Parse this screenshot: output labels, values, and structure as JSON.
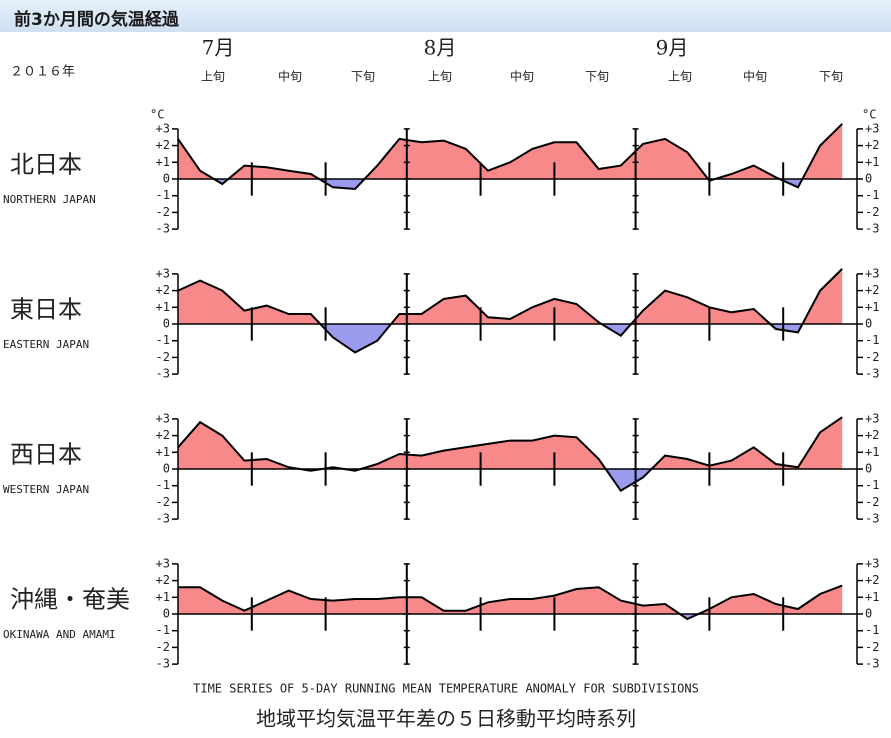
{
  "header": {
    "title": "前3か月間の気温経過"
  },
  "axis": {
    "year": "２０１６年",
    "months": [
      "7月",
      "8月",
      "9月"
    ],
    "dekads": [
      "上旬",
      "中旬",
      "下旬",
      "上旬",
      "中旬",
      "下旬",
      "上旬",
      "中旬",
      "下旬"
    ]
  },
  "footer": {
    "caption_en": "TIME SERIES OF 5-DAY RUNNING MEAN TEMPERATURE ANOMALY FOR SUBDIVISIONS",
    "caption_ja": "地域平均気温平年差の５日移動平均時系列"
  },
  "chart_data": [
    {
      "type": "area",
      "title": "北日本",
      "subtitle": "NORTHERN JAPAN",
      "unit": "°C",
      "positive_color": "#f7898b",
      "negative_color": "#9b9bee",
      "xlim": [
        0,
        92
      ],
      "xticks": [
        10,
        20,
        41,
        51,
        72,
        82
      ],
      "major_xticks": [
        31,
        62
      ],
      "ylim": [
        -3,
        3
      ],
      "yticks": [
        {
          "value": 3,
          "label": "+3"
        },
        {
          "value": 2,
          "label": "+2"
        },
        {
          "value": 1,
          "label": "+1"
        },
        0,
        -1,
        -2,
        -3
      ],
      "x": [
        0,
        3,
        6,
        9,
        12,
        15,
        18,
        21,
        24,
        27,
        30,
        33,
        36,
        39,
        42,
        45,
        48,
        51,
        54,
        57,
        60,
        63,
        66,
        69,
        72,
        75,
        78,
        81,
        84,
        87,
        90
      ],
      "values": [
        2.4,
        0.5,
        -0.3,
        0.8,
        0.7,
        0.5,
        0.3,
        -0.5,
        -0.6,
        0.8,
        2.4,
        2.2,
        2.3,
        1.8,
        0.5,
        1.0,
        1.8,
        2.2,
        2.2,
        0.6,
        0.8,
        2.1,
        2.4,
        1.6,
        -0.1,
        0.3,
        0.8,
        0.1,
        -0.5,
        2.0,
        3.3
      ]
    },
    {
      "type": "area",
      "title": "東日本",
      "subtitle": "EASTERN JAPAN",
      "positive_color": "#f7898b",
      "negative_color": "#9b9bee",
      "xlim": [
        0,
        92
      ],
      "xticks": [
        10,
        20,
        41,
        51,
        72,
        82
      ],
      "major_xticks": [
        31,
        62
      ],
      "ylim": [
        -3,
        3
      ],
      "yticks": [
        {
          "value": 3,
          "label": "+3"
        },
        {
          "value": 2,
          "label": "+2"
        },
        {
          "value": 1,
          "label": "+1"
        },
        0,
        -1,
        -2,
        -3
      ],
      "x": [
        0,
        3,
        6,
        9,
        12,
        15,
        18,
        21,
        24,
        27,
        30,
        33,
        36,
        39,
        42,
        45,
        48,
        51,
        54,
        57,
        60,
        63,
        66,
        69,
        72,
        75,
        78,
        81,
        84,
        87,
        90
      ],
      "values": [
        2.0,
        2.6,
        2.0,
        0.8,
        1.1,
        0.6,
        0.6,
        -0.8,
        -1.7,
        -1.0,
        0.6,
        0.6,
        1.5,
        1.7,
        0.4,
        0.3,
        1.0,
        1.5,
        1.2,
        0.1,
        -0.7,
        0.8,
        2.0,
        1.6,
        1.0,
        0.7,
        0.9,
        -0.3,
        -0.5,
        2.0,
        3.3
      ]
    },
    {
      "type": "area",
      "title": "西日本",
      "subtitle": "WESTERN JAPAN",
      "positive_color": "#f7898b",
      "negative_color": "#9b9bee",
      "xlim": [
        0,
        92
      ],
      "xticks": [
        10,
        20,
        41,
        51,
        72,
        82
      ],
      "major_xticks": [
        31,
        62
      ],
      "ylim": [
        -3,
        3
      ],
      "yticks": [
        {
          "value": 3,
          "label": "+3"
        },
        {
          "value": 2,
          "label": "+2"
        },
        {
          "value": 1,
          "label": "+1"
        },
        0,
        -1,
        -2,
        -3
      ],
      "x": [
        0,
        3,
        6,
        9,
        12,
        15,
        18,
        21,
        24,
        27,
        30,
        33,
        36,
        39,
        42,
        45,
        48,
        51,
        54,
        57,
        60,
        63,
        66,
        69,
        72,
        75,
        78,
        81,
        84,
        87,
        90
      ],
      "values": [
        1.3,
        2.8,
        2.0,
        0.5,
        0.6,
        0.1,
        -0.1,
        0.1,
        -0.1,
        0.3,
        0.9,
        0.8,
        1.1,
        1.3,
        1.5,
        1.7,
        1.7,
        2.0,
        1.9,
        0.6,
        -1.3,
        -0.5,
        0.8,
        0.6,
        0.2,
        0.5,
        1.3,
        0.3,
        0.1,
        2.2,
        3.1
      ]
    },
    {
      "type": "area",
      "title": "沖縄・奄美",
      "subtitle": "OKINAWA AND AMAMI",
      "positive_color": "#f7898b",
      "negative_color": "#9b9bee",
      "xlim": [
        0,
        92
      ],
      "xticks": [
        10,
        20,
        41,
        51,
        72,
        82
      ],
      "major_xticks": [
        31,
        62
      ],
      "ylim": [
        -3,
        3
      ],
      "yticks": [
        {
          "value": 3,
          "label": "+3"
        },
        {
          "value": 2,
          "label": "+2"
        },
        {
          "value": 1,
          "label": "+1"
        },
        0,
        -1,
        -2,
        -3
      ],
      "x": [
        0,
        3,
        6,
        9,
        12,
        15,
        18,
        21,
        24,
        27,
        30,
        33,
        36,
        39,
        42,
        45,
        48,
        51,
        54,
        57,
        60,
        63,
        66,
        69,
        72,
        75,
        78,
        81,
        84,
        87,
        90
      ],
      "values": [
        1.6,
        1.6,
        0.8,
        0.2,
        0.8,
        1.4,
        0.9,
        0.8,
        0.9,
        0.9,
        1.0,
        1.0,
        0.2,
        0.2,
        0.7,
        0.9,
        0.9,
        1.1,
        1.5,
        1.6,
        0.8,
        0.5,
        0.6,
        -0.3,
        0.3,
        1.0,
        1.2,
        0.6,
        0.3,
        1.2,
        1.7
      ]
    }
  ]
}
